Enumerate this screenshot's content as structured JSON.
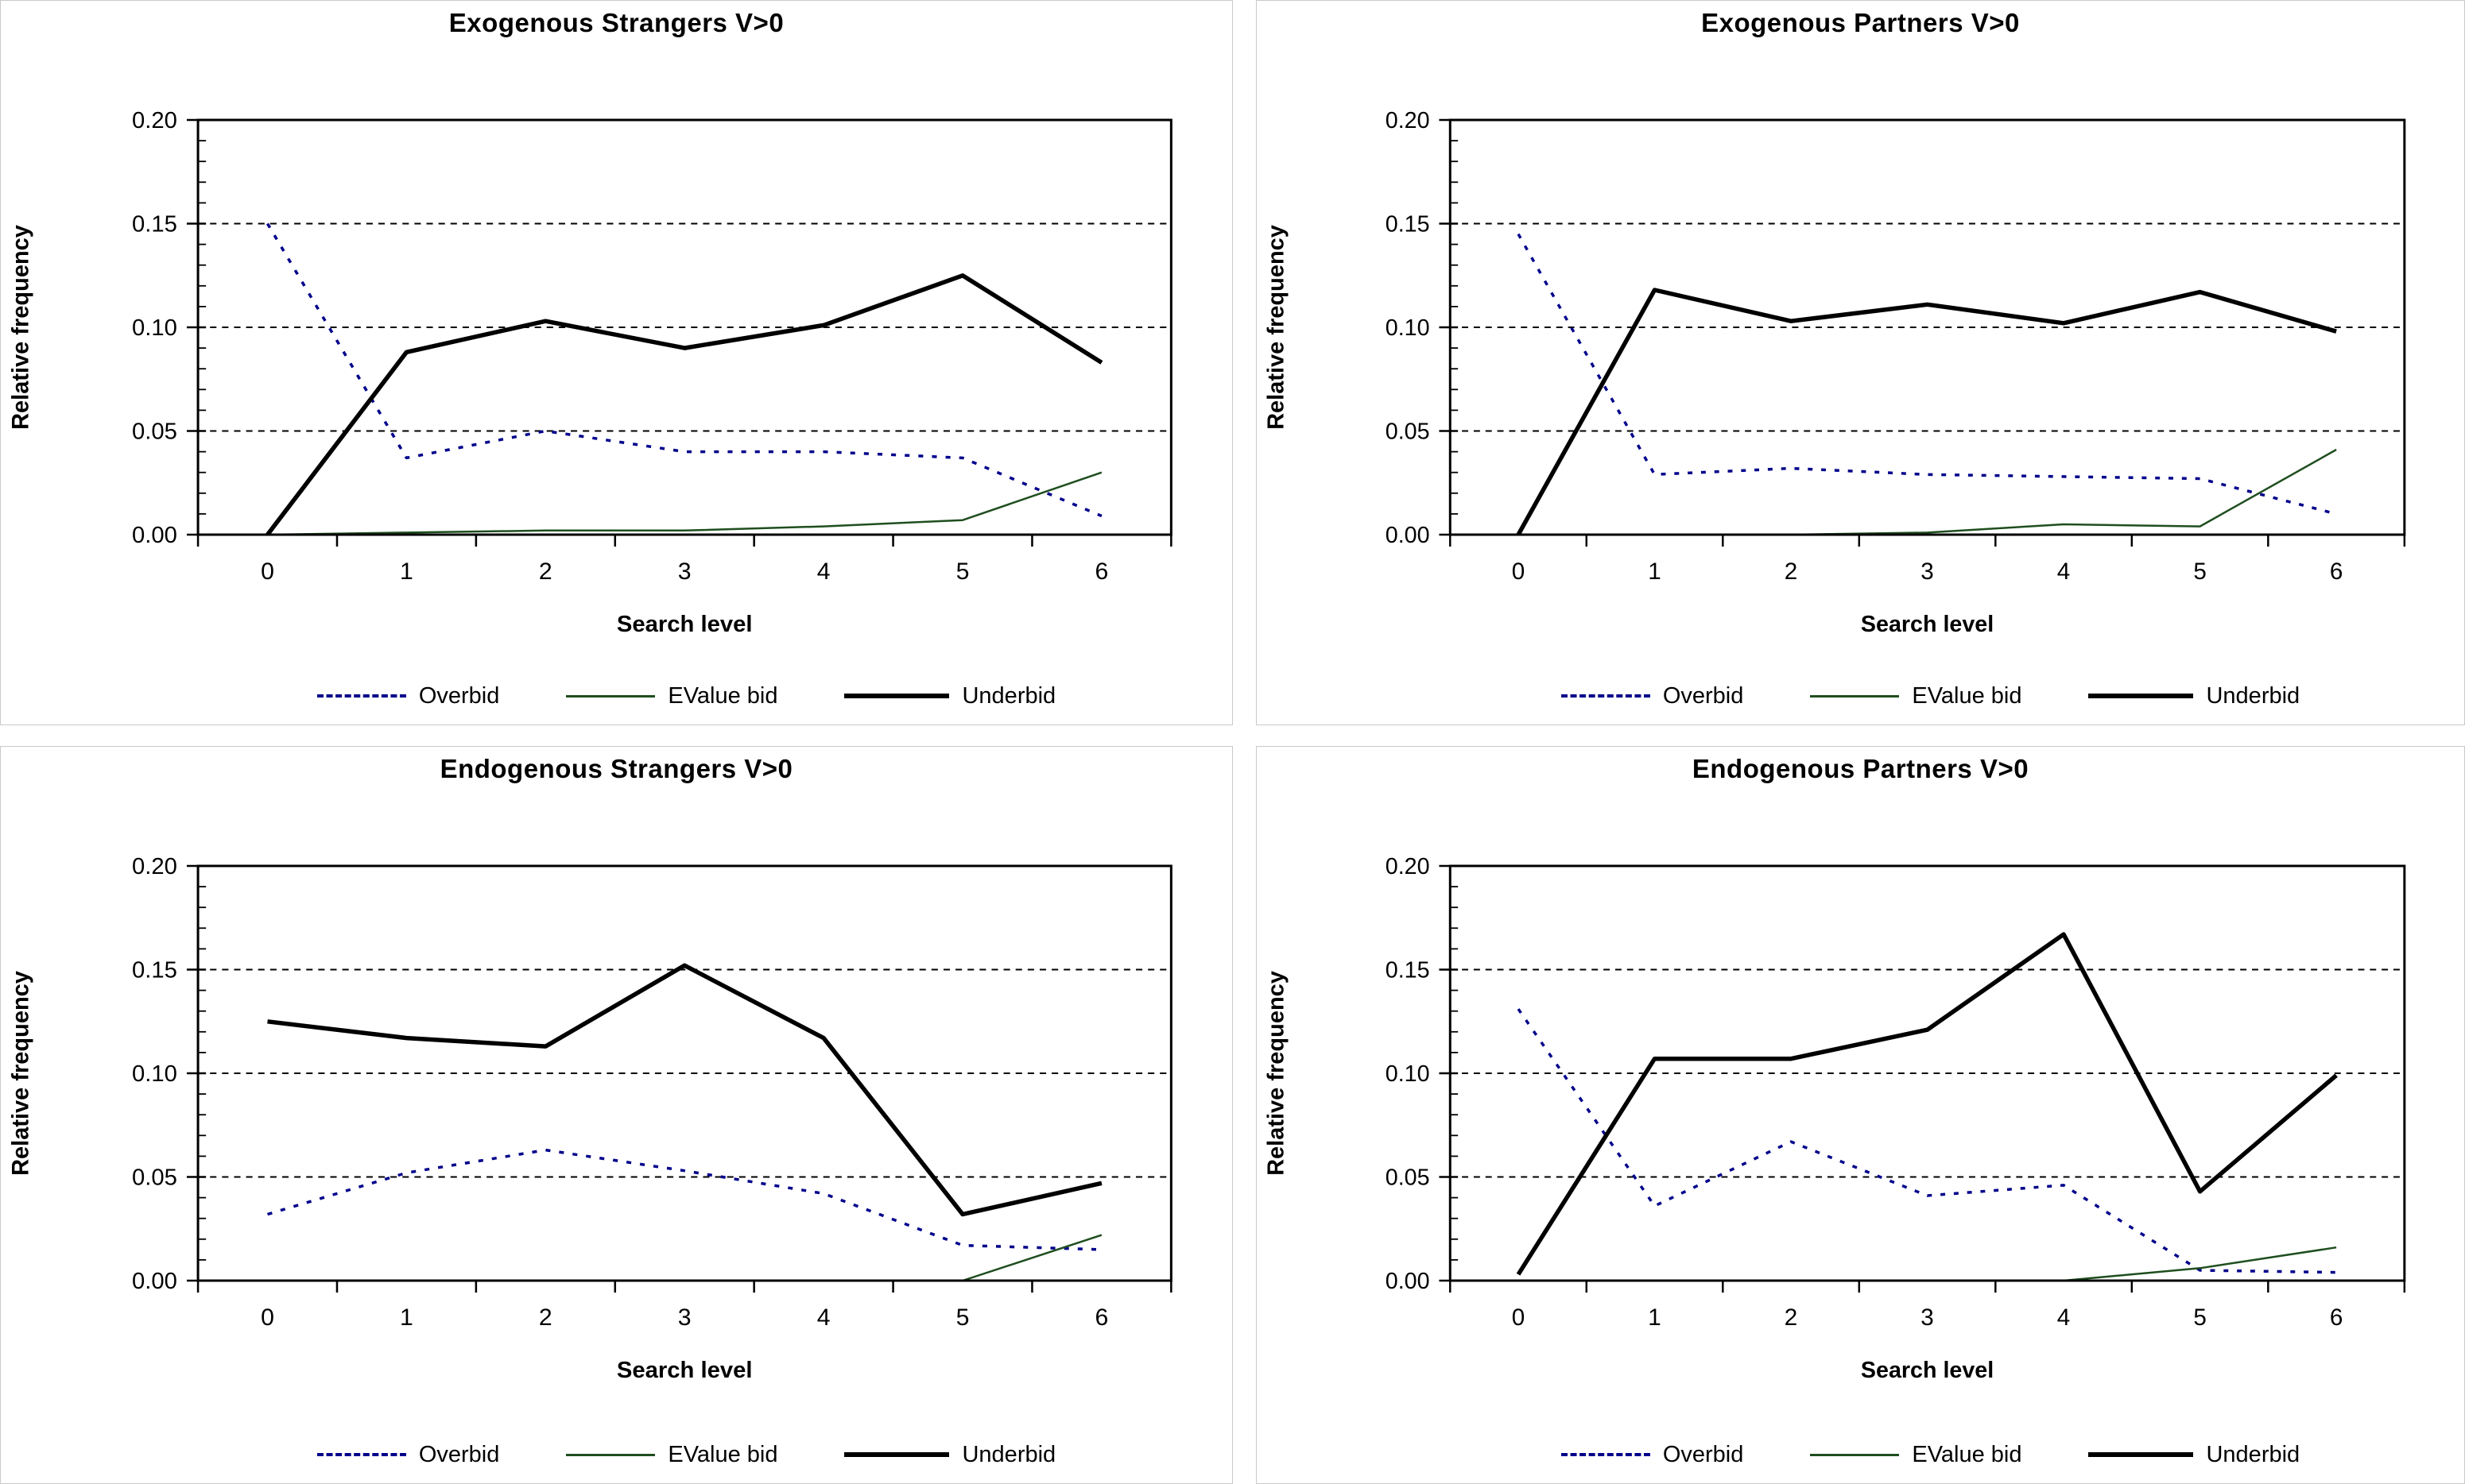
{
  "page": {
    "background": "#ffffff",
    "panel_border_color": "#c9c9c9"
  },
  "axes": {
    "y_label": "Relative frequency",
    "x_label": "Search level",
    "y_tick_labels": [
      "0.00",
      "0.05",
      "0.10",
      "0.15",
      "0.20"
    ],
    "y_tick_values": [
      0,
      0.05,
      0.1,
      0.15,
      0.2
    ],
    "y_minor_step": 0.01,
    "x_tick_labels": [
      "0",
      "1",
      "2",
      "3",
      "4",
      "5",
      "6"
    ],
    "gridline_values": [
      0.05,
      0.1,
      0.15
    ],
    "ylim": [
      0,
      0.2
    ]
  },
  "legend": {
    "position": "bottom",
    "items": [
      {
        "label": "Overbid",
        "series": "overbid"
      },
      {
        "label": "EValue bid",
        "series": "evalue"
      },
      {
        "label": "Underbid",
        "series": "underbid"
      }
    ]
  },
  "series_styles": {
    "overbid": {
      "color": "#00008B",
      "width": 3.5,
      "dash": "6 11"
    },
    "evalue": {
      "color": "#1F4E1F",
      "width": 2.5,
      "dash": null
    },
    "underbid": {
      "color": "#000000",
      "width": 5.5,
      "dash": null
    }
  },
  "chart_data": [
    {
      "type": "line",
      "title": "Exogenous Strangers V>0",
      "xlabel": "Search level",
      "ylabel": "Relative frequency",
      "categories": [
        "0",
        "1",
        "2",
        "3",
        "4",
        "5",
        "6"
      ],
      "ylim": [
        0,
        0.2
      ],
      "gridlines": [
        0.05,
        0.1,
        0.15
      ],
      "grid_style": "dashed-horizontal",
      "legend_position": "bottom",
      "series": [
        {
          "key": "overbid",
          "name": "Overbid",
          "values": [
            0.15,
            0.037,
            0.05,
            0.04,
            0.04,
            0.037,
            0.009
          ]
        },
        {
          "key": "evalue",
          "name": "EValue bid",
          "values": [
            0.0,
            0.001,
            0.002,
            0.002,
            0.004,
            0.007,
            0.03
          ]
        },
        {
          "key": "underbid",
          "name": "Underbid",
          "values": [
            0.0,
            0.088,
            0.103,
            0.09,
            0.101,
            0.125,
            0.083
          ]
        }
      ]
    },
    {
      "type": "line",
      "title": "Exogenous Partners V>0",
      "xlabel": "Search level",
      "ylabel": "Relative frequency",
      "categories": [
        "0",
        "1",
        "2",
        "3",
        "4",
        "5",
        "6"
      ],
      "ylim": [
        0,
        0.2
      ],
      "gridlines": [
        0.05,
        0.1,
        0.15
      ],
      "grid_style": "dashed-horizontal",
      "legend_position": "bottom",
      "series": [
        {
          "key": "overbid",
          "name": "Overbid",
          "values": [
            0.145,
            0.029,
            0.032,
            0.029,
            0.028,
            0.027,
            0.01
          ]
        },
        {
          "key": "evalue",
          "name": "EValue bid",
          "values": [
            0.0,
            0.0,
            0.0,
            0.001,
            0.005,
            0.004,
            0.041
          ]
        },
        {
          "key": "underbid",
          "name": "Underbid",
          "values": [
            0.0,
            0.118,
            0.103,
            0.111,
            0.102,
            0.117,
            0.098
          ]
        }
      ]
    },
    {
      "type": "line",
      "title": "Endogenous Strangers V>0",
      "xlabel": "Search level",
      "ylabel": "Relative frequency",
      "categories": [
        "0",
        "1",
        "2",
        "3",
        "4",
        "5",
        "6"
      ],
      "ylim": [
        0,
        0.2
      ],
      "gridlines": [
        0.05,
        0.1,
        0.15
      ],
      "grid_style": "dashed-horizontal",
      "legend_position": "bottom",
      "series": [
        {
          "key": "overbid",
          "name": "Overbid",
          "values": [
            0.032,
            0.052,
            0.063,
            0.053,
            0.042,
            0.017,
            0.015
          ]
        },
        {
          "key": "evalue",
          "name": "EValue bid",
          "values": [
            0.0,
            0.0,
            0.0,
            0.0,
            0.0,
            0.0,
            0.022
          ]
        },
        {
          "key": "underbid",
          "name": "Underbid",
          "values": [
            0.125,
            0.117,
            0.113,
            0.152,
            0.117,
            0.032,
            0.047
          ]
        }
      ]
    },
    {
      "type": "line",
      "title": "Endogenous Partners V>0",
      "xlabel": "Search level",
      "ylabel": "Relative frequency",
      "categories": [
        "0",
        "1",
        "2",
        "3",
        "4",
        "5",
        "6"
      ],
      "ylim": [
        0,
        0.2
      ],
      "gridlines": [
        0.05,
        0.1,
        0.15
      ],
      "grid_style": "dashed-horizontal",
      "legend_position": "bottom",
      "series": [
        {
          "key": "overbid",
          "name": "Overbid",
          "values": [
            0.131,
            0.036,
            0.067,
            0.041,
            0.046,
            0.005,
            0.004
          ]
        },
        {
          "key": "evalue",
          "name": "EValue bid",
          "values": [
            0.0,
            0.0,
            0.0,
            0.0,
            0.0,
            0.006,
            0.016
          ]
        },
        {
          "key": "underbid",
          "name": "Underbid",
          "values": [
            0.003,
            0.107,
            0.107,
            0.121,
            0.167,
            0.043,
            0.099
          ]
        }
      ]
    }
  ]
}
